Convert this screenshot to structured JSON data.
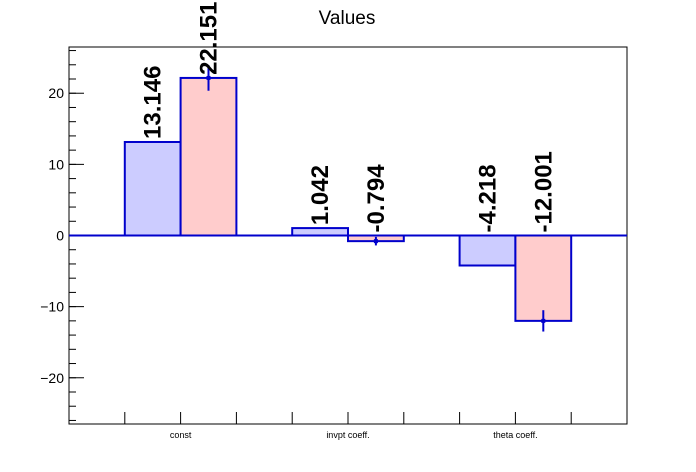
{
  "chart_data": {
    "type": "bar",
    "title": "Values",
    "xlabel": "",
    "ylabel": "",
    "categories": [
      "const",
      "invpt coeff.",
      "theta coeff."
    ],
    "ylim": [
      -26.5,
      26.5
    ],
    "yticks": [
      -20,
      -10,
      0,
      10,
      20
    ],
    "yminor_step": 2,
    "grid": false,
    "series": [
      {
        "values": [
          13.146,
          1.042,
          -4.218
        ],
        "labels": [
          "13.146",
          "1.042",
          "-4.218"
        ],
        "errors": [
          0,
          0,
          0
        ],
        "fill": "#ccccff",
        "stroke": "#0000cc"
      },
      {
        "values": [
          22.151,
          -0.794,
          -12.001
        ],
        "labels": [
          "22.151",
          "-0.794",
          "-12.001"
        ],
        "errors": [
          1.8,
          0.6,
          1.5
        ],
        "fill": "#ffcccc",
        "stroke": "#0000cc"
      }
    ]
  }
}
